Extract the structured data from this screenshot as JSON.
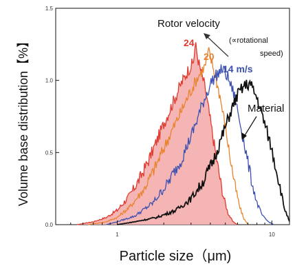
{
  "chart_data": {
    "type": "line",
    "title": "",
    "xlabel": "Particle size（μm)",
    "ylabel": "Volume base distribution【%】",
    "x_scale": "log",
    "xlim": [
      0.4,
      13
    ],
    "ylim": [
      0,
      1.5
    ],
    "x_ticks": [
      {
        "value": 1,
        "label": "1"
      },
      {
        "value": 10,
        "label": "10"
      }
    ],
    "y_ticks": [
      {
        "value": 0.0,
        "label": "0.0"
      },
      {
        "value": 0.5,
        "label": "0.5"
      },
      {
        "value": 1.0,
        "label": "1.0"
      },
      {
        "value": 1.5,
        "label": "1.5"
      }
    ],
    "grid": false,
    "annotations": {
      "rotor_title": "Rotor velocity",
      "rotor_sub_line1": "(∝rotational",
      "rotor_sub_line2": "speed)",
      "material": "Material"
    },
    "series": [
      {
        "name": "24",
        "color": "#e03a2e",
        "fill": "#f4a8a8",
        "x": [
          0.55,
          0.7,
          0.85,
          1.0,
          1.2,
          1.4,
          1.6,
          1.8,
          2.0,
          2.3,
          2.6,
          2.9,
          3.1,
          3.2,
          3.4,
          3.7,
          4.0,
          4.4,
          4.8,
          5.2,
          5.6,
          6.0
        ],
        "y": [
          0.0,
          0.02,
          0.05,
          0.1,
          0.2,
          0.32,
          0.45,
          0.58,
          0.7,
          0.85,
          0.98,
          1.08,
          1.12,
          1.25,
          1.1,
          0.95,
          0.72,
          0.45,
          0.22,
          0.08,
          0.02,
          0.0
        ]
      },
      {
        "name": "20",
        "color": "#e8832e",
        "x": [
          0.65,
          0.85,
          1.0,
          1.2,
          1.5,
          1.8,
          2.1,
          2.5,
          2.9,
          3.3,
          3.7,
          3.9,
          4.2,
          4.6,
          5.0,
          5.4,
          5.8,
          6.2,
          6.6,
          7.0
        ],
        "y": [
          0.0,
          0.02,
          0.05,
          0.12,
          0.25,
          0.42,
          0.58,
          0.75,
          0.9,
          1.02,
          1.1,
          1.2,
          1.08,
          0.9,
          0.68,
          0.45,
          0.26,
          0.12,
          0.04,
          0.0
        ]
      },
      {
        "name": "14 m/s",
        "color": "#3b4fb0",
        "x": [
          0.85,
          1.0,
          1.3,
          1.7,
          2.1,
          2.6,
          3.1,
          3.6,
          4.1,
          4.5,
          4.8,
          5.2,
          5.7,
          6.2,
          6.8,
          7.4,
          8.0,
          8.7,
          9.5,
          10.3
        ],
        "y": [
          0.0,
          0.02,
          0.06,
          0.15,
          0.28,
          0.45,
          0.65,
          0.85,
          1.0,
          1.05,
          1.08,
          1.02,
          0.9,
          0.72,
          0.5,
          0.3,
          0.15,
          0.06,
          0.02,
          0.0
        ]
      },
      {
        "name": "Material",
        "color": "#111111",
        "x": [
          1.0,
          1.3,
          1.8,
          2.4,
          3.0,
          3.6,
          4.2,
          4.8,
          5.4,
          6.0,
          6.6,
          7.2,
          8.0,
          9.0,
          10.0,
          11.0,
          12.0,
          13.0
        ],
        "y": [
          0.0,
          0.02,
          0.05,
          0.1,
          0.18,
          0.3,
          0.45,
          0.62,
          0.78,
          0.9,
          0.96,
          0.98,
          0.88,
          0.7,
          0.52,
          0.32,
          0.12,
          0.02
        ]
      }
    ]
  }
}
